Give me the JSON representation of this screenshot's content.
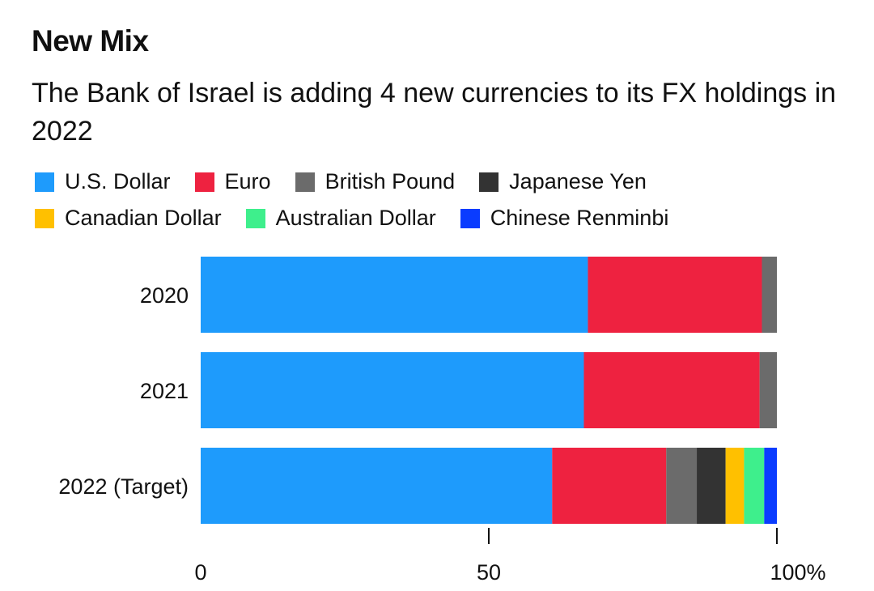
{
  "chart_data": {
    "type": "bar",
    "orientation": "horizontal",
    "stacked": true,
    "title": "New Mix",
    "subtitle": "The Bank of Israel is adding 4 new currencies to its FX holdings in 2022",
    "categories": [
      "2020",
      "2021",
      "2022 (Target)"
    ],
    "series": [
      {
        "name": "U.S. Dollar",
        "color": "#1e9bfc",
        "values": [
          67.2,
          66.5,
          61.0
        ]
      },
      {
        "name": "Euro",
        "color": "#ee2240",
        "values": [
          30.2,
          30.5,
          19.8
        ]
      },
      {
        "name": "British Pound",
        "color": "#6b6b6b",
        "values": [
          2.6,
          3.0,
          5.3
        ]
      },
      {
        "name": "Japanese Yen",
        "color": "#333333",
        "values": [
          0,
          0,
          5.0
        ]
      },
      {
        "name": "Canadian Dollar",
        "color": "#ffc000",
        "values": [
          0,
          0,
          3.2
        ]
      },
      {
        "name": "Australian Dollar",
        "color": "#3eef8c",
        "values": [
          0,
          0,
          3.5
        ]
      },
      {
        "name": "Chinese Renminbi",
        "color": "#0a3cff",
        "values": [
          0,
          0,
          2.2
        ]
      }
    ],
    "xlim": [
      0,
      100
    ],
    "x_ticks": [
      "0",
      "50",
      "100%"
    ],
    "x_tick_values": [
      0,
      50,
      100
    ],
    "legend_position": "top"
  }
}
